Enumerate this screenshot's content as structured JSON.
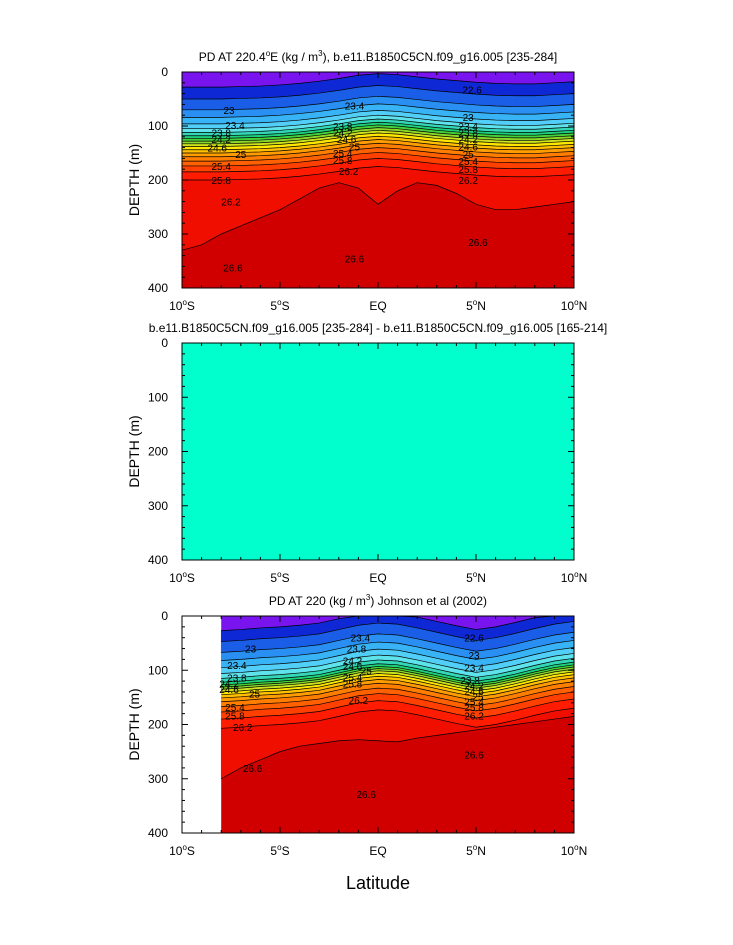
{
  "figure": {
    "xlabel": "Latitude"
  },
  "chart_data": [
    {
      "type": "contour",
      "title": "PD AT 220.4",
      "title_sup": "o",
      "title_mid": "E (kg / m",
      "title_sup2": "3",
      "title_end": "), b.e11.B1850C5CN.f09_g16.005 [235-284]",
      "xlabel": "Latitude",
      "ylabel": "DEPTH (m)",
      "xlim": [
        -10,
        10
      ],
      "ylim": [
        0,
        400
      ],
      "x_ticks": [
        {
          "value": -10,
          "label": "10",
          "sup": "o",
          "suffix": "S"
        },
        {
          "value": -5,
          "label": "5",
          "sup": "o",
          "suffix": "S"
        },
        {
          "value": 0,
          "label": "EQ",
          "sup": "",
          "suffix": ""
        },
        {
          "value": 5,
          "label": "5",
          "sup": "o",
          "suffix": "N"
        },
        {
          "value": 10,
          "label": "10",
          "sup": "o",
          "suffix": "N"
        }
      ],
      "y_ticks": [
        0,
        100,
        200,
        300,
        400
      ],
      "x_data_start": -10,
      "x": [
        -10,
        -9,
        -8,
        -7,
        -6,
        -5,
        -4,
        -3,
        -2,
        -1,
        0,
        1,
        2,
        3,
        4,
        5,
        6,
        7,
        8,
        9,
        10
      ],
      "base": [
        118,
        118,
        118,
        117,
        116,
        114,
        111,
        107,
        102,
        96,
        93,
        95,
        99,
        103,
        106,
        109,
        111,
        112,
        112,
        110,
        108
      ],
      "deep": [
        330,
        320,
        300,
        285,
        270,
        255,
        235,
        215,
        205,
        215,
        245,
        220,
        205,
        210,
        225,
        245,
        255,
        255,
        250,
        245,
        240
      ],
      "levels": [
        {
          "value": 22.6,
          "offset": -90
        },
        {
          "value": 22.8,
          "offset": -68
        },
        {
          "value": 23.0,
          "offset": -48
        },
        {
          "value": 23.2,
          "offset": -34
        },
        {
          "value": 23.4,
          "offset": -22
        },
        {
          "value": 23.6,
          "offset": -13
        },
        {
          "value": 23.8,
          "offset": -6
        },
        {
          "value": 24.0,
          "offset": 0
        },
        {
          "value": 24.2,
          "offset": 5
        },
        {
          "value": 24.4,
          "offset": 10
        },
        {
          "value": 24.6,
          "offset": 15
        },
        {
          "value": 24.8,
          "offset": 20
        },
        {
          "value": 25.0,
          "offset": 26
        },
        {
          "value": 25.2,
          "offset": 32
        },
        {
          "value": 25.4,
          "offset": 39
        },
        {
          "value": 25.6,
          "offset": 47
        },
        {
          "value": 25.8,
          "offset": 56
        },
        {
          "value": 26.0,
          "offset": 67
        },
        {
          "value": 26.2,
          "offset": 82
        }
      ],
      "labels": [
        {
          "text": "23",
          "x": -7.6,
          "y": 70
        },
        {
          "text": "23.4",
          "x": -7.3,
          "y": 98
        },
        {
          "text": "23.8",
          "x": -8.0,
          "y": 112
        },
        {
          "text": "24.2",
          "x": -8.0,
          "y": 124
        },
        {
          "text": "24.6",
          "x": -8.2,
          "y": 140
        },
        {
          "text": "25",
          "x": -7.0,
          "y": 152
        },
        {
          "text": "25.4",
          "x": -8.0,
          "y": 174
        },
        {
          "text": "25.8",
          "x": -8.0,
          "y": 200
        },
        {
          "text": "26.2",
          "x": -7.5,
          "y": 240
        },
        {
          "text": "26.6",
          "x": -7.4,
          "y": 362
        },
        {
          "text": "23.4",
          "x": -1.2,
          "y": 62
        },
        {
          "text": "23.8",
          "x": -1.8,
          "y": 100
        },
        {
          "text": "24.2",
          "x": -1.8,
          "y": 112
        },
        {
          "text": "24.6",
          "x": -1.6,
          "y": 124
        },
        {
          "text": "25",
          "x": -1.2,
          "y": 138
        },
        {
          "text": "25.4",
          "x": -1.8,
          "y": 150
        },
        {
          "text": "25.8",
          "x": -1.8,
          "y": 163
        },
        {
          "text": "26.2",
          "x": -1.5,
          "y": 183
        },
        {
          "text": "26.6",
          "x": -1.2,
          "y": 345
        },
        {
          "text": "22.6",
          "x": 4.8,
          "y": 32
        },
        {
          "text": "23",
          "x": 4.6,
          "y": 83
        },
        {
          "text": "23.4",
          "x": 4.6,
          "y": 100
        },
        {
          "text": "23.8",
          "x": 4.6,
          "y": 112
        },
        {
          "text": "24.2",
          "x": 4.6,
          "y": 124
        },
        {
          "text": "24.6",
          "x": 4.6,
          "y": 138
        },
        {
          "text": "25",
          "x": 4.6,
          "y": 152
        },
        {
          "text": "25.4",
          "x": 4.6,
          "y": 165
        },
        {
          "text": "25.8",
          "x": 4.6,
          "y": 180
        },
        {
          "text": "26.2",
          "x": 4.6,
          "y": 200
        },
        {
          "text": "26.6",
          "x": 5.1,
          "y": 315
        }
      ]
    },
    {
      "type": "contour",
      "title": "b.e11.B1850C5CN.f09_g16.005 [235-284] - b.e11.B1850C5CN.f09_g16.005 [165-214]",
      "title_sup": "",
      "title_mid": "",
      "title_sup2": "",
      "title_end": "",
      "xlabel": "Latitude",
      "ylabel": "DEPTH (m)",
      "xlim": [
        -10,
        10
      ],
      "ylim": [
        0,
        400
      ],
      "x_ticks": [
        {
          "value": -10,
          "label": "10",
          "sup": "o",
          "suffix": "S"
        },
        {
          "value": -5,
          "label": "5",
          "sup": "o",
          "suffix": "S"
        },
        {
          "value": 0,
          "label": "EQ",
          "sup": "",
          "suffix": ""
        },
        {
          "value": 5,
          "label": "5",
          "sup": "o",
          "suffix": "N"
        },
        {
          "value": 10,
          "label": "10",
          "sup": "o",
          "suffix": "N"
        }
      ],
      "y_ticks": [
        0,
        100,
        200,
        300,
        400
      ],
      "uniform_color": "#00ffcc",
      "difference_value": 0
    },
    {
      "type": "contour",
      "title": "PD AT 220 (kg / m",
      "title_sup": "3",
      "title_mid": ") Johnson et al (2002)",
      "title_sup2": "",
      "title_end": "",
      "xlabel": "Latitude",
      "ylabel": "DEPTH (m)",
      "xlim": [
        -10,
        10
      ],
      "ylim": [
        0,
        400
      ],
      "x_ticks": [
        {
          "value": -10,
          "label": "10",
          "sup": "o",
          "suffix": "S"
        },
        {
          "value": -5,
          "label": "5",
          "sup": "o",
          "suffix": "S"
        },
        {
          "value": 0,
          "label": "EQ",
          "sup": "",
          "suffix": ""
        },
        {
          "value": 5,
          "label": "5",
          "sup": "o",
          "suffix": "N"
        },
        {
          "value": 10,
          "label": "10",
          "sup": "o",
          "suffix": "N"
        }
      ],
      "y_ticks": [
        0,
        100,
        200,
        300,
        400
      ],
      "x_data_start": -8,
      "x": [
        -8,
        -7,
        -6,
        -5,
        -4,
        -3,
        -2,
        -1,
        0,
        1,
        2,
        3,
        4,
        5,
        6,
        7,
        8,
        9,
        10
      ],
      "base": [
        122,
        120,
        117,
        115,
        112,
        108,
        100,
        92,
        88,
        90,
        97,
        105,
        113,
        120,
        115,
        107,
        98,
        90,
        85
      ],
      "deep": [
        300,
        280,
        265,
        250,
        240,
        235,
        230,
        228,
        230,
        232,
        225,
        220,
        215,
        210,
        205,
        200,
        195,
        190,
        185
      ],
      "levels": [
        {
          "value": 22.6,
          "offset": -95
        },
        {
          "value": 22.8,
          "offset": -75
        },
        {
          "value": 23.0,
          "offset": -55
        },
        {
          "value": 23.2,
          "offset": -40
        },
        {
          "value": 23.4,
          "offset": -27
        },
        {
          "value": 23.6,
          "offset": -16
        },
        {
          "value": 23.8,
          "offset": -7
        },
        {
          "value": 24.0,
          "offset": 0
        },
        {
          "value": 24.2,
          "offset": 5
        },
        {
          "value": 24.4,
          "offset": 9
        },
        {
          "value": 24.6,
          "offset": 13
        },
        {
          "value": 24.8,
          "offset": 18
        },
        {
          "value": 25.0,
          "offset": 23
        },
        {
          "value": 25.2,
          "offset": 29
        },
        {
          "value": 25.4,
          "offset": 36
        },
        {
          "value": 25.6,
          "offset": 45
        },
        {
          "value": 25.8,
          "offset": 55
        },
        {
          "value": 26.0,
          "offset": 68
        },
        {
          "value": 26.2,
          "offset": 85
        }
      ],
      "labels": [
        {
          "text": "23",
          "x": -6.5,
          "y": 60
        },
        {
          "text": "23.4",
          "x": -7.2,
          "y": 90
        },
        {
          "text": "23.8",
          "x": -7.2,
          "y": 113
        },
        {
          "text": "24.2",
          "x": -7.6,
          "y": 124
        },
        {
          "text": "24.6",
          "x": -7.6,
          "y": 135
        },
        {
          "text": "25",
          "x": -6.3,
          "y": 143
        },
        {
          "text": "25.4",
          "x": -7.3,
          "y": 168
        },
        {
          "text": "25.8",
          "x": -7.3,
          "y": 183
        },
        {
          "text": "26.2",
          "x": -6.9,
          "y": 205
        },
        {
          "text": "26.6",
          "x": -6.4,
          "y": 280
        },
        {
          "text": "23.4",
          "x": -0.9,
          "y": 40
        },
        {
          "text": "23.8",
          "x": -1.1,
          "y": 60
        },
        {
          "text": "24.2",
          "x": -1.3,
          "y": 82
        },
        {
          "text": "24.6",
          "x": -1.3,
          "y": 92
        },
        {
          "text": "25",
          "x": -0.6,
          "y": 100
        },
        {
          "text": "25.4",
          "x": -1.3,
          "y": 112
        },
        {
          "text": "25.8",
          "x": -1.3,
          "y": 124
        },
        {
          "text": "26.2",
          "x": -1.0,
          "y": 155
        },
        {
          "text": "26.6",
          "x": -0.6,
          "y": 328
        },
        {
          "text": "22.6",
          "x": 4.9,
          "y": 40
        },
        {
          "text": "23",
          "x": 4.9,
          "y": 72
        },
        {
          "text": "23.4",
          "x": 4.9,
          "y": 95
        },
        {
          "text": "23.8",
          "x": 4.7,
          "y": 118
        },
        {
          "text": "24.2",
          "x": 4.9,
          "y": 128
        },
        {
          "text": "24.6",
          "x": 4.9,
          "y": 138
        },
        {
          "text": "25",
          "x": 5.1,
          "y": 148
        },
        {
          "text": "25.4",
          "x": 4.9,
          "y": 158
        },
        {
          "text": "25.8",
          "x": 4.9,
          "y": 168
        },
        {
          "text": "26.2",
          "x": 4.9,
          "y": 183
        },
        {
          "text": "26.6",
          "x": 4.9,
          "y": 255
        }
      ]
    }
  ]
}
